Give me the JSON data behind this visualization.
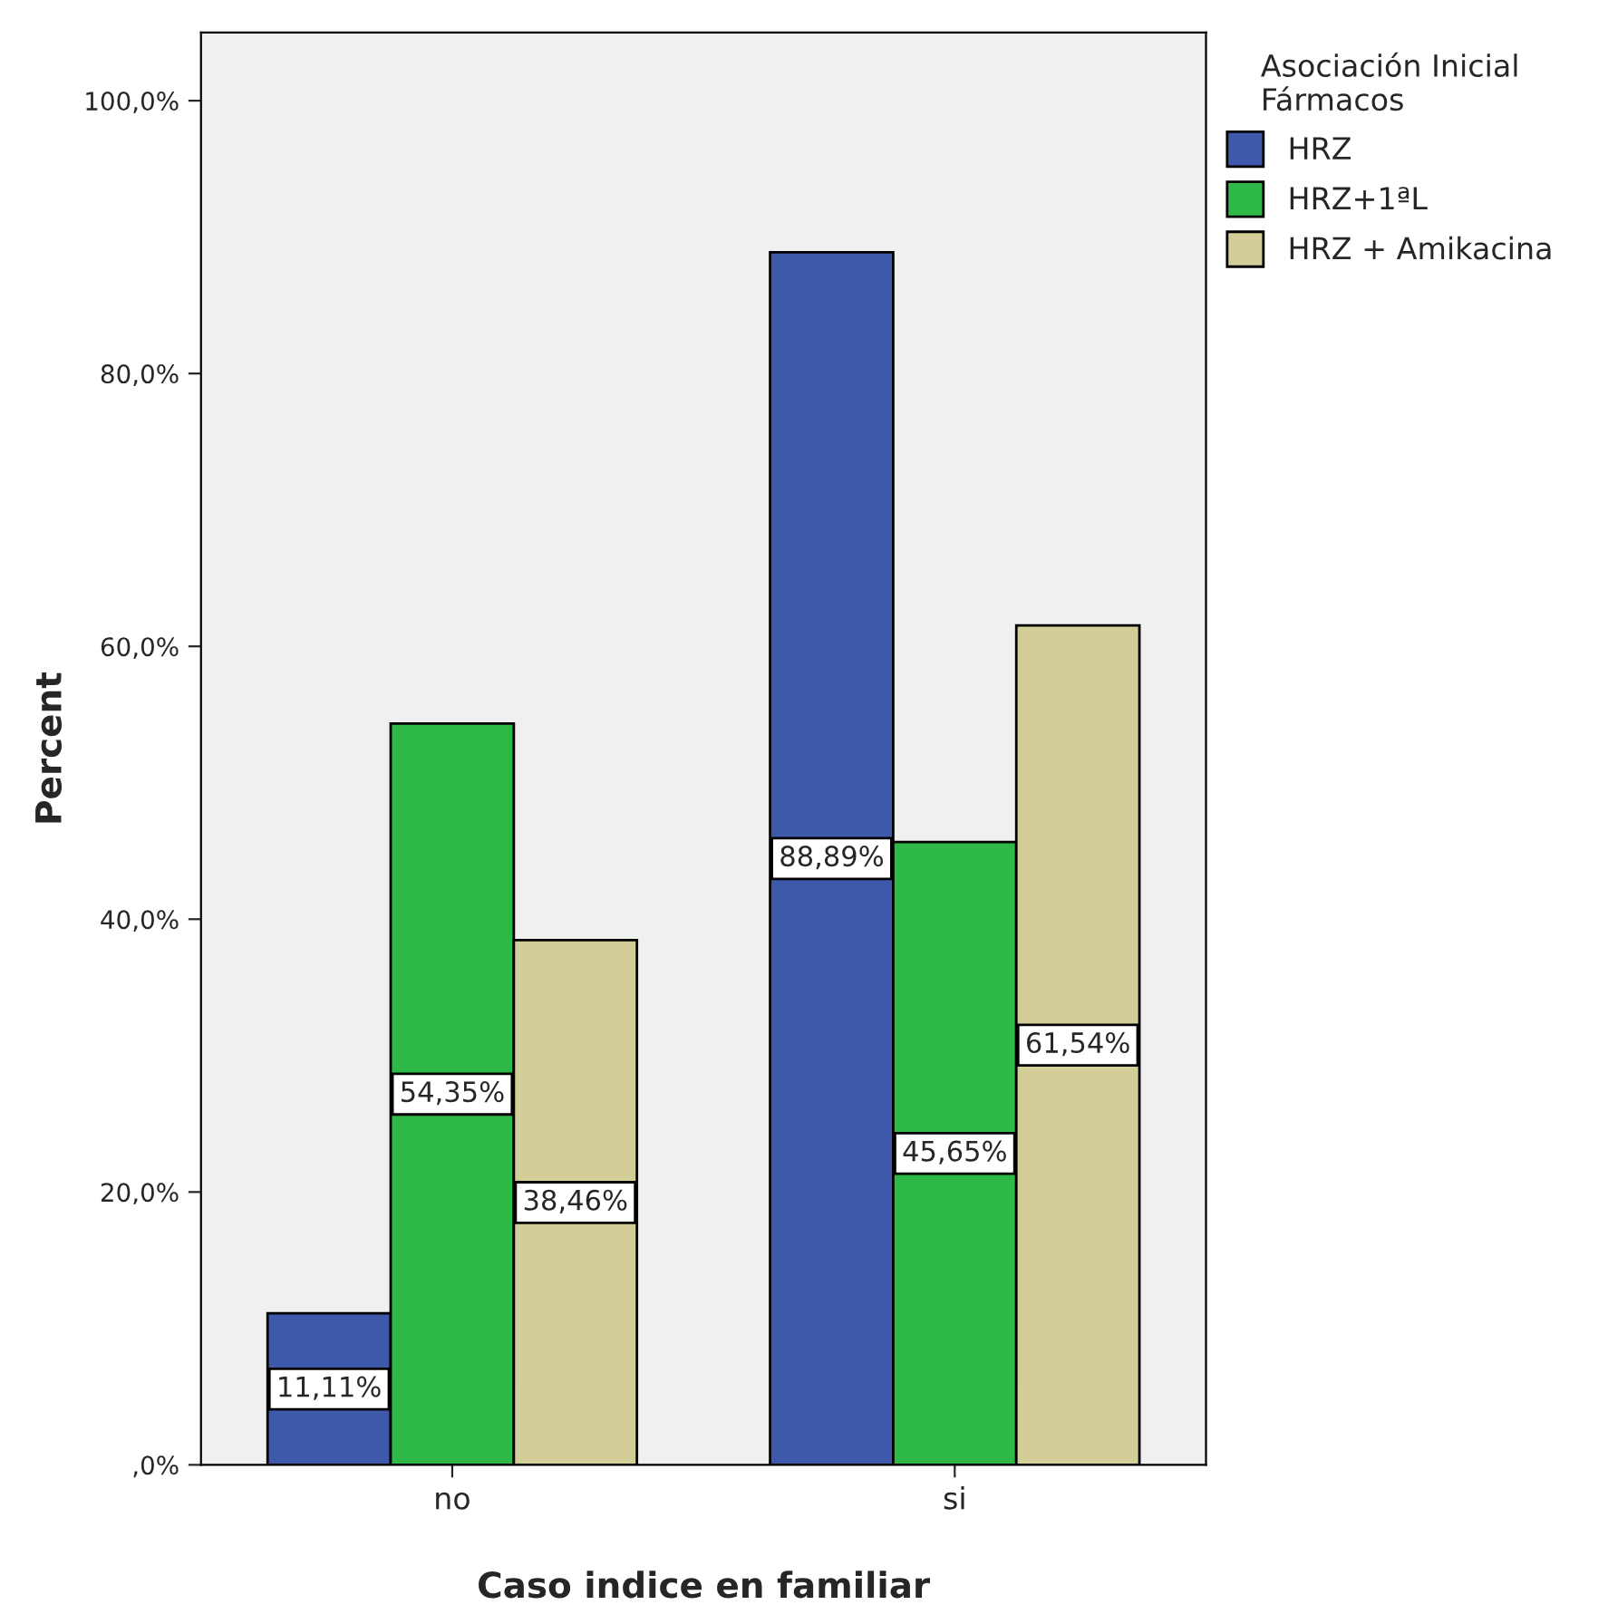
{
  "chart_data": {
    "type": "bar",
    "xlabel": "Caso indice en familiar",
    "ylabel": "Percent",
    "legend_title": "Asociación Inicial\nFármacos",
    "categories": [
      "no",
      "si"
    ],
    "series": [
      {
        "name": "HRZ",
        "color": "#3e58ac",
        "values": [
          11.11,
          88.89
        ],
        "value_labels": [
          "11,11%",
          "88,89%"
        ]
      },
      {
        "name": "HRZ+1ªL",
        "color": "#2eb848",
        "values": [
          54.35,
          45.65
        ],
        "value_labels": [
          "54,35%",
          "45,65%"
        ]
      },
      {
        "name": "HRZ + Amikacina",
        "color": "#d3ce97",
        "values": [
          38.46,
          61.54
        ],
        "value_labels": [
          "38,46%",
          "61,54%"
        ]
      }
    ],
    "ylim": [
      0,
      105
    ],
    "yticks": [
      {
        "value": 0,
        "label": ",0%"
      },
      {
        "value": 20,
        "label": "20,0%"
      },
      {
        "value": 40,
        "label": "40,0%"
      },
      {
        "value": 60,
        "label": "60,0%"
      },
      {
        "value": 80,
        "label": "80,0%"
      },
      {
        "value": 100,
        "label": "100,0%"
      }
    ],
    "grid": false,
    "legend": "top right"
  }
}
